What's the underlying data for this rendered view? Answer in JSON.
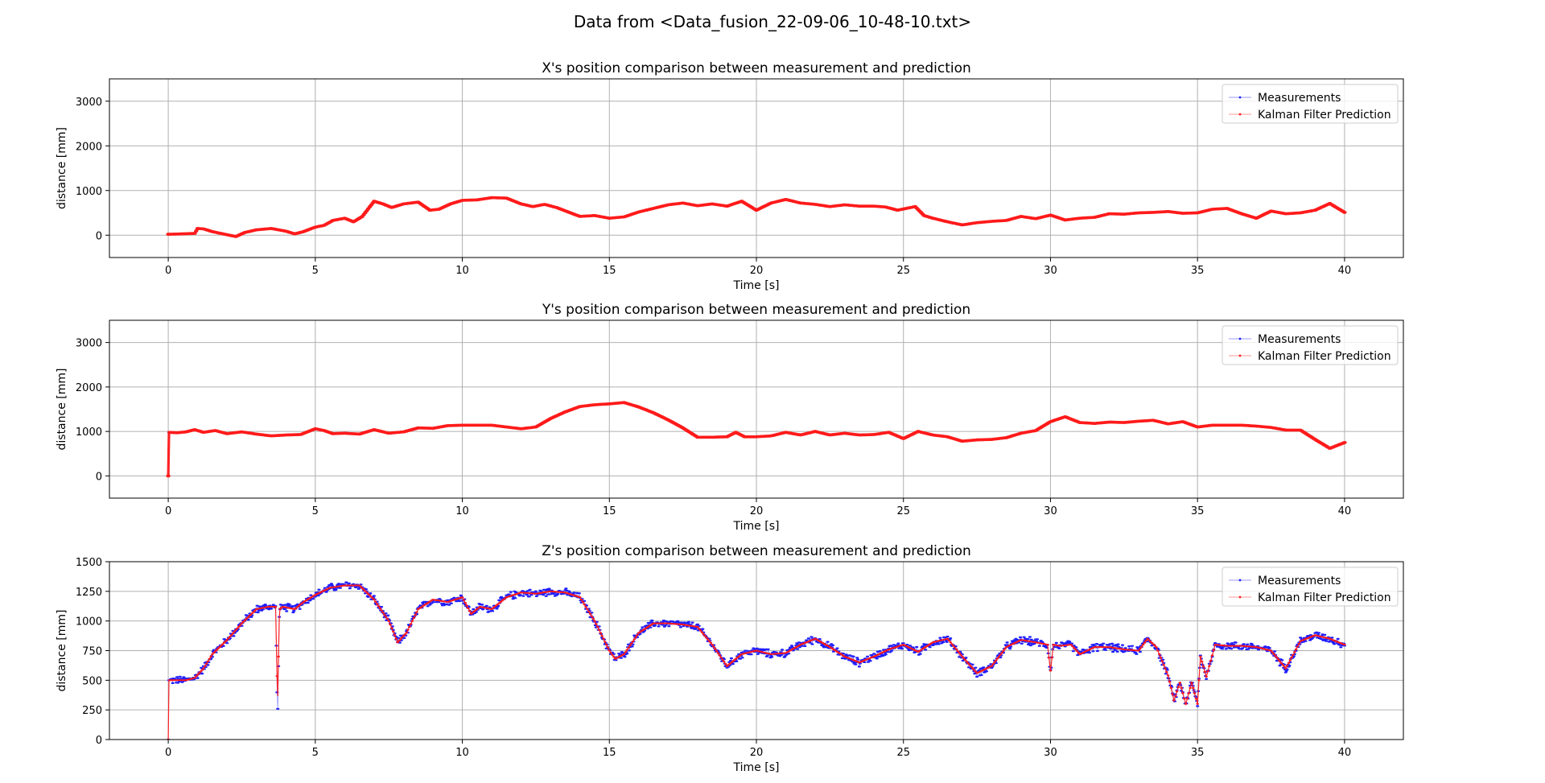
{
  "figure_title": "Data from <Data_fusion_22-09-06_10-48-10.txt>",
  "colors": {
    "measurements": "#1f1fff",
    "prediction": "#ff1a1a",
    "grid": "#b0b0b0"
  },
  "chart_data": [
    {
      "type": "line",
      "title": "X's position comparison between measurement and prediction",
      "xlabel": "Time [s]",
      "ylabel": "distance [mm]",
      "xlim": [
        -2,
        42
      ],
      "ylim": [
        -500,
        3500
      ],
      "xticks": [
        0,
        5,
        10,
        15,
        20,
        25,
        30,
        35,
        40
      ],
      "yticks": [
        0,
        1000,
        2000,
        3000
      ],
      "grid": true,
      "legend_position": "top-right",
      "series": [
        {
          "name": "Measurements",
          "color": "#1f1fff",
          "noise": 0
        },
        {
          "name": "Kalman Filter Prediction",
          "color": "#ff1a1a"
        }
      ],
      "x": [
        0,
        0.5,
        0.9,
        1.0,
        1.2,
        1.5,
        2.0,
        2.3,
        2.6,
        3.0,
        3.5,
        4.0,
        4.3,
        4.6,
        5.0,
        5.3,
        5.6,
        6.0,
        6.3,
        6.6,
        7.0,
        7.3,
        7.6,
        8.0,
        8.5,
        8.9,
        9.2,
        9.6,
        10.0,
        10.5,
        11.0,
        11.5,
        12.0,
        12.4,
        12.8,
        13.2,
        13.6,
        14.0,
        14.5,
        15.0,
        15.5,
        16.0,
        16.5,
        17.0,
        17.5,
        18.0,
        18.5,
        19.0,
        19.5,
        20.0,
        20.5,
        21.0,
        21.5,
        22.0,
        22.5,
        23.0,
        23.5,
        24.0,
        24.4,
        24.8,
        25.1,
        25.4,
        25.7,
        26.0,
        26.5,
        27.0,
        27.5,
        28.0,
        28.5,
        29.0,
        29.5,
        30.0,
        30.5,
        31.0,
        31.5,
        32.0,
        32.5,
        33.0,
        33.5,
        34.0,
        34.5,
        35.0,
        35.5,
        36.0,
        36.5,
        37.0,
        37.5,
        38.0,
        38.5,
        39.0,
        39.5,
        40.0
      ],
      "measurements": [
        20,
        30,
        40,
        150,
        140,
        80,
        10,
        -30,
        60,
        120,
        150,
        90,
        30,
        80,
        180,
        220,
        330,
        380,
        300,
        420,
        760,
        700,
        620,
        700,
        740,
        560,
        580,
        700,
        780,
        790,
        840,
        830,
        700,
        640,
        690,
        620,
        520,
        420,
        440,
        380,
        410,
        520,
        600,
        680,
        720,
        660,
        700,
        650,
        760,
        560,
        720,
        800,
        720,
        690,
        640,
        680,
        650,
        650,
        630,
        560,
        600,
        640,
        440,
        380,
        300,
        230,
        280,
        310,
        330,
        420,
        370,
        450,
        340,
        380,
        400,
        480,
        470,
        500,
        510,
        530,
        490,
        500,
        580,
        600,
        480,
        380,
        540,
        480,
        500,
        560,
        710,
        510
      ],
      "prediction": [
        20,
        30,
        40,
        150,
        140,
        80,
        10,
        -30,
        60,
        120,
        150,
        90,
        30,
        80,
        180,
        220,
        330,
        380,
        300,
        420,
        760,
        700,
        620,
        700,
        740,
        560,
        580,
        700,
        780,
        790,
        840,
        830,
        700,
        640,
        690,
        620,
        520,
        420,
        440,
        380,
        410,
        520,
        600,
        680,
        720,
        660,
        700,
        650,
        760,
        560,
        720,
        800,
        720,
        690,
        640,
        680,
        650,
        650,
        630,
        560,
        600,
        640,
        440,
        380,
        300,
        230,
        280,
        310,
        330,
        420,
        370,
        450,
        340,
        380,
        400,
        480,
        470,
        500,
        510,
        530,
        490,
        500,
        580,
        600,
        480,
        380,
        540,
        480,
        500,
        560,
        710,
        510
      ]
    },
    {
      "type": "line",
      "title": "Y's position comparison between measurement and prediction",
      "xlabel": "Time [s]",
      "ylabel": "distance [mm]",
      "xlim": [
        -2,
        42
      ],
      "ylim": [
        -500,
        3500
      ],
      "xticks": [
        0,
        5,
        10,
        15,
        20,
        25,
        30,
        35,
        40
      ],
      "yticks": [
        0,
        1000,
        2000,
        3000
      ],
      "grid": true,
      "legend_position": "top-right",
      "series": [
        {
          "name": "Measurements",
          "color": "#1f1fff",
          "noise": 0
        },
        {
          "name": "Kalman Filter Prediction",
          "color": "#ff1a1a"
        }
      ],
      "x": [
        0,
        0.01,
        0.3,
        0.6,
        0.9,
        1.2,
        1.6,
        2.0,
        2.5,
        3.0,
        3.5,
        4.0,
        4.5,
        5.0,
        5.3,
        5.6,
        6.0,
        6.5,
        7.0,
        7.5,
        8.0,
        8.5,
        9.0,
        9.5,
        10.0,
        10.5,
        11.0,
        11.5,
        12.0,
        12.5,
        13.0,
        13.5,
        14.0,
        14.5,
        15.0,
        15.5,
        16.0,
        16.5,
        17.0,
        17.5,
        18.0,
        18.5,
        19.0,
        19.3,
        19.6,
        20.0,
        20.5,
        21.0,
        21.5,
        22.0,
        22.5,
        23.0,
        23.5,
        24.0,
        24.5,
        25.0,
        25.5,
        26.0,
        26.5,
        27.0,
        27.5,
        28.0,
        28.5,
        29.0,
        29.5,
        30.0,
        30.5,
        31.0,
        31.5,
        32.0,
        32.5,
        33.0,
        33.5,
        34.0,
        34.5,
        35.0,
        35.5,
        36.0,
        36.5,
        37.0,
        37.5,
        38.0,
        38.5,
        39.0,
        39.5,
        40.0
      ],
      "measurements": [
        0,
        980,
        970,
        990,
        1040,
        980,
        1020,
        950,
        990,
        940,
        900,
        920,
        930,
        1060,
        1020,
        950,
        960,
        940,
        1040,
        960,
        990,
        1080,
        1070,
        1130,
        1140,
        1140,
        1140,
        1100,
        1060,
        1100,
        1290,
        1440,
        1560,
        1600,
        1620,
        1650,
        1550,
        1420,
        1260,
        1080,
        870,
        870,
        880,
        980,
        880,
        880,
        900,
        980,
        920,
        1000,
        920,
        960,
        920,
        930,
        980,
        840,
        1000,
        920,
        880,
        780,
        810,
        820,
        860,
        960,
        1020,
        1220,
        1330,
        1200,
        1180,
        1210,
        1200,
        1230,
        1250,
        1170,
        1220,
        1100,
        1140,
        1140,
        1140,
        1120,
        1090,
        1030,
        1030,
        820,
        620,
        750
      ],
      "prediction": [
        0,
        980,
        970,
        990,
        1040,
        980,
        1020,
        950,
        990,
        940,
        900,
        920,
        930,
        1060,
        1020,
        950,
        960,
        940,
        1040,
        960,
        990,
        1080,
        1070,
        1130,
        1140,
        1140,
        1140,
        1100,
        1060,
        1100,
        1290,
        1440,
        1560,
        1600,
        1620,
        1650,
        1550,
        1420,
        1260,
        1080,
        870,
        870,
        880,
        980,
        880,
        880,
        900,
        980,
        920,
        1000,
        920,
        960,
        920,
        930,
        980,
        840,
        1000,
        920,
        880,
        780,
        810,
        820,
        860,
        960,
        1020,
        1220,
        1330,
        1200,
        1180,
        1210,
        1200,
        1230,
        1250,
        1170,
        1220,
        1100,
        1140,
        1140,
        1140,
        1120,
        1090,
        1030,
        1030,
        820,
        620,
        750
      ]
    },
    {
      "type": "line",
      "title": "Z's position comparison between measurement and prediction",
      "xlabel": "Time [s]",
      "ylabel": "distance [mm]",
      "xlim": [
        -2,
        42
      ],
      "ylim": [
        0,
        1500
      ],
      "xticks": [
        0,
        5,
        10,
        15,
        20,
        25,
        30,
        35,
        40
      ],
      "yticks": [
        0,
        250,
        500,
        750,
        1000,
        1250,
        1500
      ],
      "grid": true,
      "legend_position": "top-right",
      "series": [
        {
          "name": "Measurements",
          "color": "#1f1fff",
          "noise": 40
        },
        {
          "name": "Kalman Filter Prediction",
          "color": "#ff1a1a"
        }
      ],
      "x": [
        0,
        0.01,
        0.3,
        0.6,
        0.9,
        1.2,
        1.5,
        2.0,
        2.5,
        3.0,
        3.4,
        3.65,
        3.72,
        3.78,
        3.9,
        4.3,
        4.6,
        5.0,
        5.5,
        6.0,
        6.5,
        7.0,
        7.5,
        7.8,
        8.1,
        8.5,
        9.0,
        9.5,
        10.0,
        10.3,
        10.6,
        11.0,
        11.5,
        12.0,
        12.5,
        13.0,
        13.5,
        14.0,
        14.5,
        15.0,
        15.2,
        15.5,
        16.0,
        16.5,
        17.0,
        17.5,
        18.0,
        18.5,
        19.0,
        19.5,
        20.0,
        20.5,
        21.0,
        21.5,
        22.0,
        22.5,
        23.0,
        23.5,
        24.0,
        24.5,
        25.0,
        25.5,
        26.0,
        26.5,
        27.0,
        27.5,
        28.0,
        28.5,
        29.0,
        29.5,
        29.9,
        30.0,
        30.1,
        30.3,
        30.7,
        31.0,
        31.5,
        32.0,
        32.5,
        33.0,
        33.3,
        33.6,
        34.0,
        34.2,
        34.4,
        34.6,
        34.8,
        35.0,
        35.1,
        35.3,
        35.6,
        36.0,
        36.5,
        37.0,
        37.5,
        38.0,
        38.5,
        39.0,
        39.5,
        40.0
      ],
      "measurements": [
        0,
        500,
        500,
        500,
        520,
        600,
        720,
        840,
        980,
        1100,
        1120,
        1120,
        160,
        1100,
        1120,
        1100,
        1160,
        1220,
        1280,
        1300,
        1300,
        1180,
        1000,
        820,
        900,
        1100,
        1180,
        1160,
        1200,
        1060,
        1120,
        1100,
        1200,
        1240,
        1230,
        1250,
        1240,
        1200,
        1000,
        750,
        680,
        720,
        900,
        980,
        980,
        970,
        950,
        800,
        620,
        720,
        750,
        720,
        730,
        800,
        850,
        780,
        700,
        650,
        700,
        760,
        800,
        740,
        820,
        850,
        700,
        560,
        620,
        780,
        840,
        820,
        800,
        580,
        800,
        790,
        800,
        720,
        780,
        780,
        760,
        750,
        850,
        780,
        540,
        330,
        480,
        300,
        480,
        300,
        700,
        530,
        800,
        790,
        790,
        780,
        750,
        600,
        830,
        880,
        850,
        800
      ],
      "prediction": [
        0,
        500,
        500,
        500,
        520,
        600,
        720,
        840,
        980,
        1100,
        1120,
        1120,
        300,
        1100,
        1120,
        1100,
        1160,
        1220,
        1280,
        1300,
        1300,
        1180,
        1000,
        820,
        900,
        1100,
        1180,
        1160,
        1200,
        1060,
        1120,
        1100,
        1200,
        1240,
        1230,
        1250,
        1240,
        1200,
        1000,
        750,
        680,
        720,
        900,
        980,
        980,
        970,
        950,
        800,
        620,
        720,
        750,
        720,
        730,
        800,
        850,
        780,
        700,
        650,
        700,
        760,
        800,
        740,
        820,
        850,
        700,
        560,
        620,
        780,
        840,
        820,
        800,
        580,
        800,
        790,
        800,
        720,
        780,
        780,
        760,
        750,
        850,
        780,
        540,
        330,
        480,
        300,
        480,
        300,
        700,
        530,
        800,
        790,
        790,
        780,
        750,
        600,
        830,
        880,
        850,
        800
      ]
    }
  ]
}
